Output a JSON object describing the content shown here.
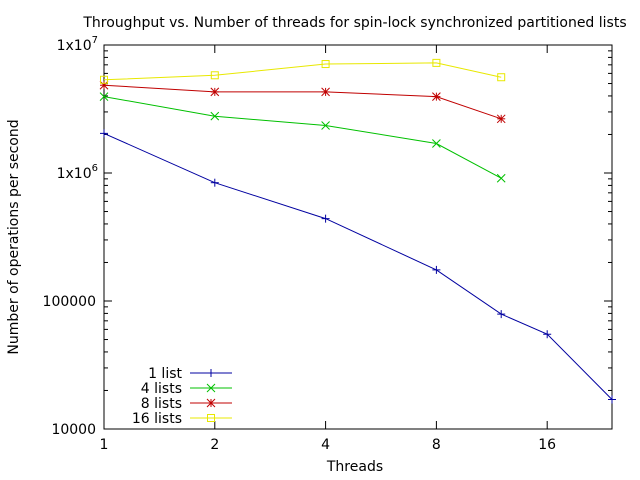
{
  "chart_data": {
    "type": "line",
    "title": "Throughput vs. Number of threads for spin-lock synchronized partitioned lists",
    "xlabel": "Threads",
    "ylabel": "Number of operations per second",
    "x_scale": "log2",
    "y_scale": "log10",
    "xlim": [
      1,
      24
    ],
    "ylim": [
      10000,
      10000000
    ],
    "x_ticks": [
      {
        "value": 1,
        "label": "1"
      },
      {
        "value": 2,
        "label": "2"
      },
      {
        "value": 4,
        "label": "4"
      },
      {
        "value": 8,
        "label": "8"
      },
      {
        "value": 16,
        "label": "16"
      }
    ],
    "y_ticks": [
      {
        "value": 10000,
        "label": "10000"
      },
      {
        "value": 100000,
        "label": "100000"
      },
      {
        "value": 1000000,
        "label": "1x10",
        "exp": "6"
      },
      {
        "value": 10000000,
        "label": "1x10",
        "exp": "7"
      }
    ],
    "grid": false,
    "legend_position": "bottom-left",
    "series": [
      {
        "name": "1 list",
        "color": "#0000a0",
        "marker": "plus",
        "points": [
          [
            1,
            2040000
          ],
          [
            2,
            840000
          ],
          [
            4,
            440000
          ],
          [
            8,
            175000
          ],
          [
            12,
            79000
          ],
          [
            16,
            55000
          ],
          [
            24,
            17000
          ]
        ]
      },
      {
        "name": "4 lists",
        "color": "#00c000",
        "marker": "cross",
        "points": [
          [
            1,
            3950000
          ],
          [
            2,
            2780000
          ],
          [
            4,
            2350000
          ],
          [
            8,
            1700000
          ],
          [
            12,
            910000
          ]
        ]
      },
      {
        "name": "8 lists",
        "color": "#c00000",
        "marker": "star",
        "points": [
          [
            1,
            4850000
          ],
          [
            2,
            4300000
          ],
          [
            4,
            4300000
          ],
          [
            8,
            3950000
          ],
          [
            12,
            2650000
          ]
        ]
      },
      {
        "name": "16 lists",
        "color": "#e8e800",
        "marker": "square",
        "points": [
          [
            1,
            5350000
          ],
          [
            2,
            5800000
          ],
          [
            4,
            7100000
          ],
          [
            8,
            7250000
          ],
          [
            12,
            5600000
          ]
        ]
      }
    ]
  }
}
